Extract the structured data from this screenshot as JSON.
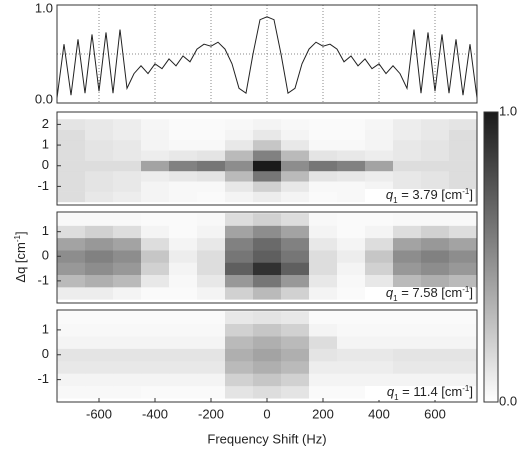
{
  "chart_data": [
    {
      "type": "line",
      "xlim": [
        -750,
        750
      ],
      "ylim": [
        0,
        1
      ],
      "xticks": [
        -600,
        -400,
        -200,
        0,
        200,
        400,
        600
      ],
      "grid": true,
      "ygrid": [
        0.5
      ],
      "yticks": [
        {
          "value": 0,
          "label": "0.0"
        },
        {
          "value": 1,
          "label": "1.0"
        }
      ],
      "color": "#222222",
      "x": [
        -750,
        -725,
        -700,
        -675,
        -650,
        -625,
        -600,
        -575,
        -550,
        -525,
        -500,
        -475,
        -450,
        -425,
        -400,
        -375,
        -350,
        -325,
        -300,
        -275,
        -250,
        -225,
        -200,
        -175,
        -150,
        -125,
        -100,
        -75,
        -50,
        -25,
        0,
        25,
        50,
        75,
        100,
        125,
        150,
        175,
        200,
        225,
        250,
        275,
        300,
        325,
        350,
        375,
        400,
        425,
        450,
        475,
        500,
        525,
        550,
        575,
        600,
        625,
        650,
        675,
        700,
        725,
        750
      ],
      "values": [
        0.05,
        0.6,
        0.08,
        0.65,
        0.1,
        0.7,
        0.12,
        0.72,
        0.1,
        0.75,
        0.15,
        0.3,
        0.38,
        0.3,
        0.4,
        0.35,
        0.45,
        0.38,
        0.48,
        0.42,
        0.55,
        0.6,
        0.58,
        0.62,
        0.55,
        0.4,
        0.15,
        0.1,
        0.5,
        0.85,
        0.88,
        0.85,
        0.5,
        0.1,
        0.15,
        0.4,
        0.55,
        0.62,
        0.58,
        0.6,
        0.55,
        0.42,
        0.48,
        0.38,
        0.45,
        0.35,
        0.4,
        0.3,
        0.38,
        0.3,
        0.15,
        0.75,
        0.1,
        0.72,
        0.12,
        0.7,
        0.1,
        0.65,
        0.08,
        0.6,
        0.05
      ]
    },
    {
      "type": "heatmap",
      "xlim": [
        -750,
        750
      ],
      "ylim": [
        -1.9,
        2.6
      ],
      "yticks": [
        -1,
        0,
        1,
        2
      ],
      "x_bins": [
        -750,
        -650,
        -550,
        -450,
        -350,
        -250,
        -150,
        -50,
        50,
        150,
        250,
        350,
        450,
        550,
        650,
        750
      ],
      "y_bins": [
        -1.75,
        -1.25,
        -0.75,
        -0.25,
        0.25,
        0.75,
        1.25,
        1.75,
        2.25
      ],
      "annotation": [
        "q",
        "1",
        " = 3.79 [cm",
        "-1",
        "]"
      ],
      "colorbar": {
        "ylim": [
          0,
          1
        ],
        "yticks": [
          {
            "value": 0,
            "label": "0.0"
          },
          {
            "value": 1,
            "label": "1.0"
          }
        ],
        "colormap": [
          "#ffffff",
          "#1a1a1a"
        ]
      },
      "z": [
        [
          0.15,
          0.1,
          0.08,
          0.05,
          0.03,
          0.02,
          0.05,
          0.08,
          0.05,
          0.02,
          0.03,
          0.05,
          0.08,
          0.1,
          0.15
        ],
        [
          0.15,
          0.12,
          0.1,
          0.05,
          0.03,
          0.03,
          0.1,
          0.2,
          0.1,
          0.03,
          0.03,
          0.05,
          0.1,
          0.12,
          0.15
        ],
        [
          0.15,
          0.12,
          0.1,
          0.08,
          0.1,
          0.12,
          0.3,
          0.6,
          0.3,
          0.12,
          0.1,
          0.08,
          0.1,
          0.12,
          0.15
        ],
        [
          0.15,
          0.15,
          0.15,
          0.4,
          0.55,
          0.6,
          0.5,
          1.0,
          0.5,
          0.6,
          0.55,
          0.4,
          0.15,
          0.15,
          0.15
        ],
        [
          0.15,
          0.12,
          0.1,
          0.08,
          0.1,
          0.12,
          0.3,
          0.55,
          0.3,
          0.12,
          0.1,
          0.08,
          0.1,
          0.12,
          0.15
        ],
        [
          0.15,
          0.12,
          0.1,
          0.05,
          0.03,
          0.03,
          0.1,
          0.25,
          0.1,
          0.03,
          0.03,
          0.05,
          0.1,
          0.12,
          0.15
        ],
        [
          0.15,
          0.1,
          0.08,
          0.05,
          0.02,
          0.02,
          0.05,
          0.1,
          0.05,
          0.02,
          0.02,
          0.05,
          0.08,
          0.1,
          0.15
        ],
        [
          0.12,
          0.1,
          0.08,
          0.04,
          0.02,
          0.02,
          0.03,
          0.05,
          0.03,
          0.02,
          0.02,
          0.04,
          0.08,
          0.1,
          0.12
        ]
      ]
    },
    {
      "type": "heatmap",
      "xlim": [
        -750,
        750
      ],
      "ylim": [
        -1.9,
        1.8
      ],
      "yticks": [
        -1,
        0,
        1
      ],
      "ylabel": [
        "Δq [cm",
        "-1",
        "]"
      ],
      "x_bins": [
        -750,
        -650,
        -550,
        -450,
        -350,
        -250,
        -150,
        -50,
        50,
        150,
        250,
        350,
        450,
        550,
        650,
        750
      ],
      "y_bins": [
        -1.75,
        -1.25,
        -0.75,
        -0.25,
        0.25,
        0.75,
        1.25,
        1.75
      ],
      "annotation": [
        "q",
        "1",
        " = 7.58 [cm",
        "-1",
        "]"
      ],
      "z": [
        [
          0.08,
          0.08,
          0.05,
          0.02,
          0.02,
          0.05,
          0.2,
          0.3,
          0.2,
          0.05,
          0.02,
          0.02,
          0.05,
          0.08,
          0.08
        ],
        [
          0.3,
          0.35,
          0.3,
          0.1,
          0.03,
          0.1,
          0.45,
          0.6,
          0.45,
          0.1,
          0.03,
          0.1,
          0.3,
          0.35,
          0.3
        ],
        [
          0.45,
          0.5,
          0.45,
          0.2,
          0.05,
          0.15,
          0.7,
          0.9,
          0.7,
          0.15,
          0.05,
          0.2,
          0.45,
          0.5,
          0.45
        ],
        [
          0.5,
          0.55,
          0.5,
          0.25,
          0.08,
          0.15,
          0.6,
          0.7,
          0.6,
          0.15,
          0.08,
          0.25,
          0.5,
          0.55,
          0.5
        ],
        [
          0.4,
          0.45,
          0.4,
          0.15,
          0.05,
          0.1,
          0.55,
          0.65,
          0.55,
          0.1,
          0.05,
          0.15,
          0.4,
          0.45,
          0.4
        ],
        [
          0.15,
          0.2,
          0.15,
          0.05,
          0.02,
          0.05,
          0.4,
          0.5,
          0.4,
          0.05,
          0.02,
          0.05,
          0.15,
          0.2,
          0.15
        ],
        [
          0.03,
          0.03,
          0.03,
          0.02,
          0.02,
          0.03,
          0.15,
          0.2,
          0.15,
          0.03,
          0.02,
          0.02,
          0.03,
          0.03,
          0.03
        ]
      ]
    },
    {
      "type": "heatmap",
      "xlim": [
        -750,
        750
      ],
      "ylim": [
        -1.9,
        1.8
      ],
      "yticks": [
        -1,
        0,
        1
      ],
      "xticks": [
        -600,
        -400,
        -200,
        0,
        200,
        400,
        600
      ],
      "xlabel": "Frequency Shift (Hz)",
      "x_bins": [
        -750,
        -650,
        -550,
        -450,
        -350,
        -250,
        -150,
        -50,
        50,
        150,
        250,
        350,
        450,
        550,
        650,
        750
      ],
      "y_bins": [
        -1.75,
        -1.25,
        -0.75,
        -0.25,
        0.25,
        0.75,
        1.25,
        1.75
      ],
      "annotation": [
        "q",
        "1",
        " = 11.4 [cm",
        "-1",
        "]"
      ],
      "z": [
        [
          0.03,
          0.03,
          0.03,
          0.02,
          0.02,
          0.02,
          0.12,
          0.15,
          0.12,
          0.02,
          0.02,
          0.02,
          0.03,
          0.03,
          0.03
        ],
        [
          0.05,
          0.05,
          0.05,
          0.05,
          0.05,
          0.05,
          0.2,
          0.25,
          0.2,
          0.05,
          0.05,
          0.05,
          0.05,
          0.05,
          0.05
        ],
        [
          0.1,
          0.1,
          0.1,
          0.1,
          0.1,
          0.1,
          0.3,
          0.35,
          0.3,
          0.08,
          0.08,
          0.08,
          0.1,
          0.1,
          0.1
        ],
        [
          0.12,
          0.12,
          0.12,
          0.12,
          0.12,
          0.12,
          0.35,
          0.4,
          0.35,
          0.12,
          0.1,
          0.1,
          0.12,
          0.12,
          0.12
        ],
        [
          0.05,
          0.05,
          0.05,
          0.05,
          0.05,
          0.05,
          0.3,
          0.35,
          0.3,
          0.15,
          0.05,
          0.05,
          0.05,
          0.05,
          0.05
        ],
        [
          0.03,
          0.03,
          0.03,
          0.03,
          0.03,
          0.03,
          0.2,
          0.25,
          0.2,
          0.05,
          0.03,
          0.03,
          0.03,
          0.03,
          0.03
        ],
        [
          0.02,
          0.02,
          0.02,
          0.02,
          0.02,
          0.02,
          0.1,
          0.12,
          0.1,
          0.02,
          0.02,
          0.02,
          0.02,
          0.02,
          0.02
        ]
      ]
    }
  ]
}
